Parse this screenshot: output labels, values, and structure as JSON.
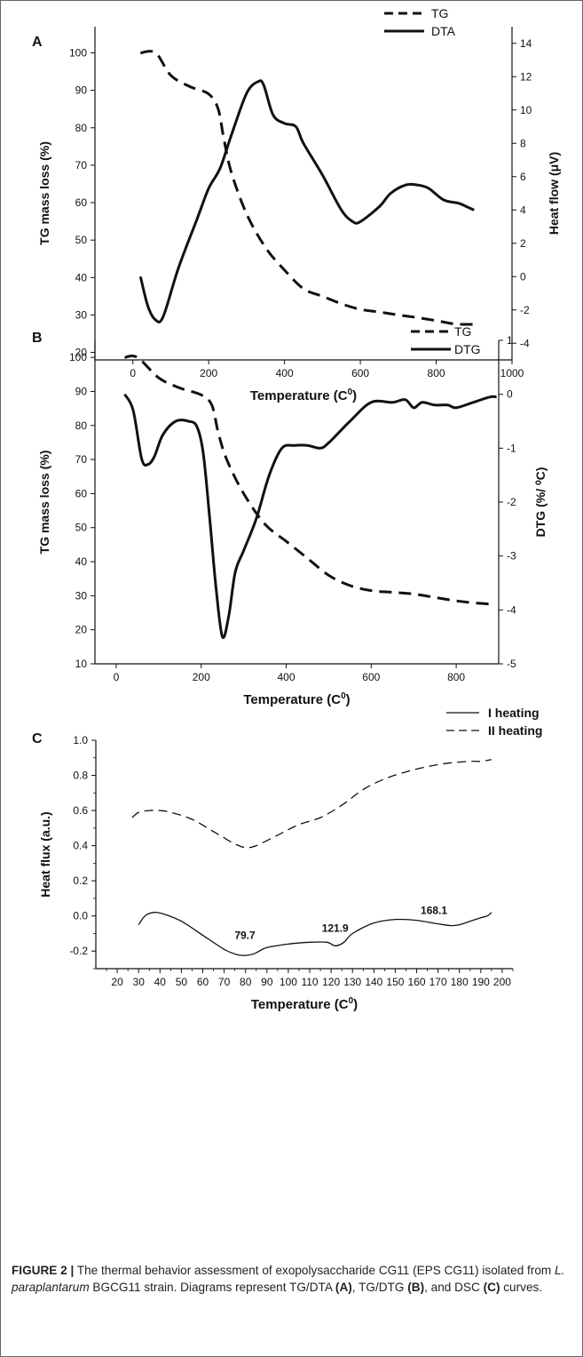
{
  "chart_data": [
    {
      "id": "A",
      "type": "line",
      "panel_label": "A",
      "xlabel": "Temperature (C",
      "xlabel_sup": "0",
      "xlabel_close": ")",
      "ylabel_left": "TG mass loss (%)",
      "ylabel_right": "Heat flow (μV)",
      "xlim": [
        -100,
        1000
      ],
      "ylim_left": [
        18,
        107
      ],
      "ylim_right": [
        -5,
        15
      ],
      "xticks": [
        0,
        200,
        400,
        600,
        800,
        1000
      ],
      "yticks_left": [
        20,
        30,
        40,
        50,
        60,
        70,
        80,
        90,
        100
      ],
      "yticks_right": [
        -4,
        -2,
        0,
        2,
        4,
        6,
        8,
        10,
        12,
        14
      ],
      "legend_position": "top-right",
      "series": [
        {
          "name": "TG",
          "axis": "left",
          "style": "dashed",
          "x": [
            20,
            60,
            100,
            150,
            200,
            225,
            240,
            260,
            300,
            350,
            400,
            450,
            500,
            550,
            600,
            650,
            700,
            750,
            800,
            850,
            900
          ],
          "y": [
            100,
            100,
            94,
            91,
            89,
            85,
            77,
            68,
            57,
            48,
            42,
            37,
            35,
            33,
            31.5,
            30.8,
            30,
            29.3,
            28.5,
            27.6,
            27.5
          ]
        },
        {
          "name": "DTA",
          "axis": "right",
          "style": "solid",
          "x": [
            20,
            40,
            60,
            80,
            120,
            170,
            200,
            230,
            260,
            300,
            330,
            345,
            370,
            400,
            430,
            450,
            500,
            550,
            580,
            600,
            650,
            680,
            720,
            750,
            780,
            820,
            860,
            880,
            900
          ],
          "y": [
            0,
            -1.8,
            -2.6,
            -2.4,
            0.5,
            3.5,
            5.3,
            6.5,
            8.5,
            11,
            11.7,
            11.5,
            9.7,
            9.2,
            9,
            8,
            6.1,
            4,
            3.3,
            3.3,
            4.2,
            5,
            5.5,
            5.5,
            5.3,
            4.6,
            4.4,
            4.2,
            4
          ]
        }
      ]
    },
    {
      "id": "B",
      "type": "line",
      "panel_label": "B",
      "xlabel": "Temperature (C",
      "xlabel_sup": "0",
      "xlabel_close": ")",
      "ylabel_left": "TG mass loss (%)",
      "ylabel_right": "DTG (%/ ⁰C)",
      "xlim": [
        -50,
        900
      ],
      "ylim_left": [
        10,
        105
      ],
      "ylim_right": [
        -5,
        1
      ],
      "xticks": [
        0,
        200,
        400,
        600,
        800
      ],
      "yticks_left": [
        10,
        20,
        30,
        40,
        50,
        60,
        70,
        80,
        90,
        100
      ],
      "yticks_right": [
        -5,
        -4,
        -3,
        -2,
        -1,
        0,
        1
      ],
      "legend_position": "top-right",
      "series": [
        {
          "name": "TG",
          "axis": "left",
          "style": "dashed",
          "x": [
            20,
            50,
            100,
            150,
            200,
            225,
            240,
            260,
            300,
            350,
            400,
            450,
            500,
            550,
            600,
            650,
            700,
            750,
            800,
            850,
            890
          ],
          "y": [
            100,
            100,
            94,
            91,
            89,
            86,
            78,
            70,
            60,
            51,
            46,
            41,
            36,
            33,
            31.5,
            31,
            30.5,
            29.5,
            28.5,
            27.8,
            27.5
          ]
        },
        {
          "name": "DTG",
          "axis": "right",
          "style": "solid",
          "x": [
            20,
            40,
            60,
            75,
            90,
            110,
            140,
            170,
            190,
            205,
            220,
            235,
            250,
            265,
            280,
            300,
            330,
            360,
            390,
            420,
            450,
            480,
            500,
            550,
            600,
            650,
            680,
            700,
            720,
            750,
            780,
            800,
            840,
            880,
            895
          ],
          "y": [
            0,
            -0.3,
            -1.2,
            -1.3,
            -1.15,
            -0.75,
            -0.5,
            -0.5,
            -0.6,
            -1.1,
            -2.3,
            -3.6,
            -4.5,
            -4.1,
            -3.3,
            -2.9,
            -2.3,
            -1.5,
            -1,
            -0.95,
            -0.95,
            -1.0,
            -0.9,
            -0.5,
            -0.15,
            -0.15,
            -0.1,
            -0.25,
            -0.15,
            -0.2,
            -0.2,
            -0.25,
            -0.15,
            -0.05,
            -0.05
          ]
        }
      ]
    },
    {
      "id": "C",
      "type": "line",
      "panel_label": "C",
      "xlabel": "Temperature (C",
      "xlabel_sup": "0",
      "xlabel_close": ")",
      "ylabel_left": "Heat flux (a.u.)",
      "xlim": [
        10,
        205
      ],
      "ylim_left": [
        -0.3,
        1.0
      ],
      "xticks": [
        20,
        30,
        40,
        50,
        60,
        70,
        80,
        90,
        100,
        110,
        120,
        130,
        140,
        150,
        160,
        170,
        180,
        190,
        200
      ],
      "ytick_labels": [
        "-0.2",
        "0.0",
        "0.2",
        "0.4",
        "0.6",
        "0.8",
        "1.0"
      ],
      "yticks_left": [
        -0.2,
        0.0,
        0.2,
        0.4,
        0.6,
        0.8,
        1.0
      ],
      "legend_position": "top-right",
      "series": [
        {
          "name": "I heating",
          "axis": "left",
          "style": "solid",
          "x": [
            30,
            33,
            37,
            42,
            50,
            60,
            70,
            76,
            80,
            84,
            90,
            100,
            110,
            118,
            122,
            126,
            130,
            140,
            150,
            160,
            170,
            176,
            180,
            185,
            190,
            193,
            195
          ],
          "y": [
            -0.05,
            0.0,
            0.02,
            0.01,
            -0.03,
            -0.11,
            -0.19,
            -0.22,
            -0.225,
            -0.215,
            -0.18,
            -0.16,
            -0.15,
            -0.15,
            -0.17,
            -0.15,
            -0.1,
            -0.04,
            -0.02,
            -0.025,
            -0.045,
            -0.055,
            -0.05,
            -0.03,
            -0.01,
            0.0,
            0.02
          ]
        },
        {
          "name": "II heating",
          "axis": "left",
          "style": "dashed",
          "x": [
            27,
            30,
            35,
            40,
            45,
            55,
            65,
            75,
            80,
            85,
            95,
            105,
            115,
            125,
            135,
            145,
            155,
            165,
            175,
            185,
            190,
            195
          ],
          "y": [
            0.56,
            0.59,
            0.6,
            0.6,
            0.59,
            0.55,
            0.48,
            0.41,
            0.39,
            0.4,
            0.46,
            0.52,
            0.56,
            0.63,
            0.72,
            0.78,
            0.82,
            0.85,
            0.87,
            0.88,
            0.88,
            0.89
          ]
        }
      ],
      "annotations": [
        {
          "text": "79.7",
          "x": 79.7,
          "y": -0.13
        },
        {
          "text": "121.9",
          "x": 121.9,
          "y": -0.09
        },
        {
          "text": "168.1",
          "x": 168.1,
          "y": 0.01
        }
      ]
    }
  ],
  "caption": {
    "figure_label": "FIGURE 2 |",
    "text_1": " The thermal behavior assessment of exopolysaccharide CG11 (EPS CG11) isolated from ",
    "organism": "L. paraplantarum",
    "text_2": " BGCG11 strain. Diagrams represent TG/DTA ",
    "ref_a": "(A)",
    "text_3": ", TG/DTG ",
    "ref_b": "(B)",
    "text_4": ", and DSC ",
    "ref_c": "(C)",
    "text_5": " curves."
  }
}
